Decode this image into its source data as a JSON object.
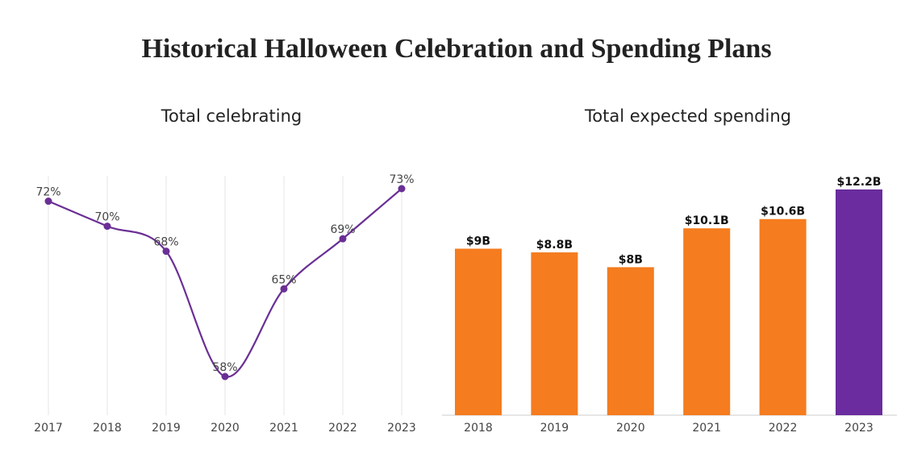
{
  "title": "Historical Halloween Celebration and Spending Plans",
  "chart_data": [
    {
      "type": "line",
      "title": "Total celebrating",
      "categories": [
        "2017",
        "2018",
        "2019",
        "2020",
        "2021",
        "2022",
        "2023"
      ],
      "values": [
        72,
        70,
        68,
        58,
        65,
        69,
        73
      ],
      "value_labels": [
        "72%",
        "70%",
        "68%",
        "58%",
        "65%",
        "69%",
        "73%"
      ],
      "color": "#6a2f95",
      "grid": true
    },
    {
      "type": "bar",
      "title": "Total expected spending",
      "categories": [
        "2018",
        "2019",
        "2020",
        "2021",
        "2022",
        "2023"
      ],
      "values": [
        9,
        8.8,
        8,
        10.1,
        10.6,
        12.2
      ],
      "value_labels": [
        "$9B",
        "$8.8B",
        "$8B",
        "$10.1B",
        "$10.6B",
        "$12.2B"
      ],
      "colors": [
        "#f57c1f",
        "#f57c1f",
        "#f57c1f",
        "#f57c1f",
        "#f57c1f",
        "#6a2c9e"
      ]
    }
  ]
}
